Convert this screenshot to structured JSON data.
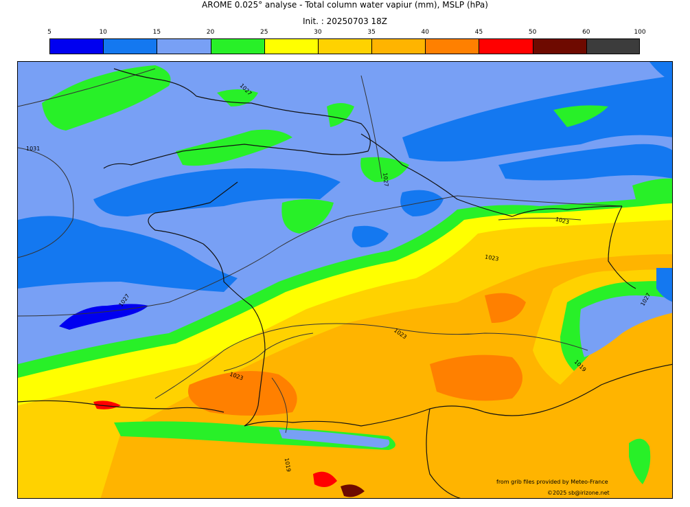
{
  "title": "AROME 0.025° analyse - Total column water vapiur (mm), MSLP (hPa)",
  "init": "Init. : 20250703 18Z",
  "colorbar": {
    "ticks": [
      "5",
      "10",
      "15",
      "20",
      "25",
      "30",
      "35",
      "40",
      "45",
      "50",
      "60",
      "100"
    ],
    "colors": [
      "#0000f0",
      "#1478f0",
      "#78a0f5",
      "#28f028",
      "#ffff00",
      "#ffd200",
      "#ffb400",
      "#ff8000",
      "#ff0000",
      "#6e0a00",
      "#3c3c3c"
    ]
  },
  "isobars": [
    "1031",
    "1027",
    "1027",
    "1027",
    "1023",
    "1023",
    "1023",
    "1023",
    "1027",
    "1019",
    "1019",
    "1019"
  ],
  "credits": {
    "source": "from grib files provided by Meteo-France",
    "copyright": "©2025 sb@irizone.net"
  }
}
